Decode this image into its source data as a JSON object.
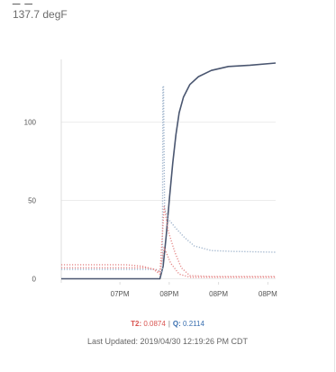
{
  "header": {
    "title_fragment": "_ _",
    "current_value": "137.7 degF"
  },
  "chart_data": {
    "type": "line",
    "x_tick_labels": [
      "07PM",
      "08PM",
      "08PM",
      "08PM"
    ],
    "y_ticks": [
      0,
      50,
      100
    ],
    "ylim": [
      -2,
      140
    ],
    "xlim": [
      0,
      100
    ],
    "grid": "horizontal",
    "series": [
      {
        "color": "#4a5670",
        "style": "solid",
        "points": [
          [
            0,
            0
          ],
          [
            46,
            0
          ],
          [
            47.5,
            8
          ],
          [
            49,
            28
          ],
          [
            50.5,
            52
          ],
          [
            52,
            74
          ],
          [
            53.5,
            92
          ],
          [
            55,
            106
          ],
          [
            57,
            116
          ],
          [
            60,
            124
          ],
          [
            64,
            129
          ],
          [
            70,
            133
          ],
          [
            78,
            135.5
          ],
          [
            88,
            136.3
          ],
          [
            100,
            137.7
          ]
        ]
      },
      {
        "color": "#9fb4cc",
        "style": "dotted",
        "points": [
          [
            0,
            6
          ],
          [
            44,
            6
          ],
          [
            46,
            5
          ],
          [
            47.2,
            4
          ],
          [
            47.4,
            123
          ],
          [
            47.7,
            123
          ],
          [
            48.2,
            45
          ],
          [
            50,
            38
          ],
          [
            53,
            33
          ],
          [
            57,
            27
          ],
          [
            62,
            21
          ],
          [
            70,
            18
          ],
          [
            80,
            17.5
          ],
          [
            100,
            17
          ]
        ]
      },
      {
        "color": "#e58a8a",
        "style": "dotted",
        "points": [
          [
            0,
            9
          ],
          [
            30,
            9
          ],
          [
            38,
            8
          ],
          [
            43,
            6
          ],
          [
            46,
            3
          ],
          [
            48,
            46
          ],
          [
            50,
            30
          ],
          [
            53,
            17
          ],
          [
            56,
            7
          ],
          [
            60,
            2
          ],
          [
            70,
            1.5
          ],
          [
            100,
            1.5
          ]
        ]
      },
      {
        "color": "#e58a8a",
        "style": "dotted",
        "points": [
          [
            0,
            7
          ],
          [
            40,
            7
          ],
          [
            44,
            6
          ],
          [
            46,
            4
          ],
          [
            48,
            20
          ],
          [
            51,
            10
          ],
          [
            55,
            3
          ],
          [
            60,
            1
          ],
          [
            100,
            1
          ]
        ]
      }
    ]
  },
  "stats": {
    "t2_label": "T2:",
    "t2_value": "0.0874",
    "separator": "|",
    "q_label": "Q:",
    "q_value": "0.2114"
  },
  "last_updated": "Last Updated: 2019/04/30 12:19:26 PM CDT"
}
